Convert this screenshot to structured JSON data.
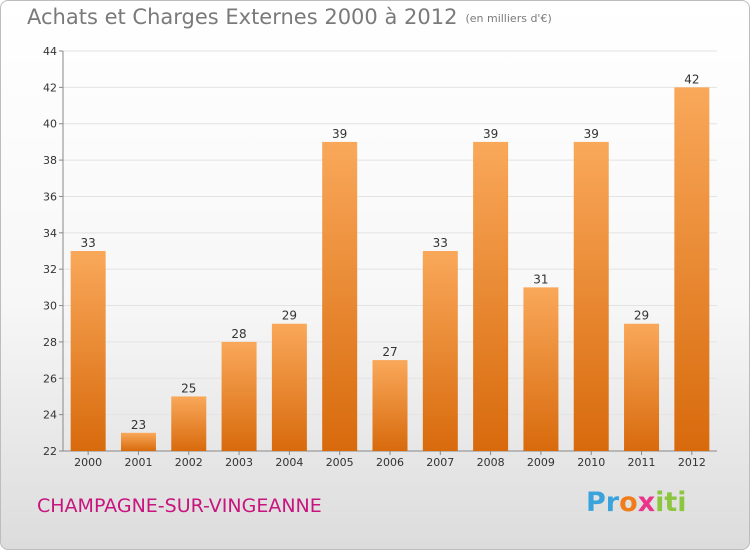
{
  "title": "Achats et Charges Externes 2000 à 2012",
  "subtitle": "(en milliers d'€)",
  "commune": "CHAMPAGNE-SUR-VINGEANNE",
  "brand": {
    "letters": [
      "P",
      "r",
      "o",
      "x",
      "i",
      "t",
      "i"
    ],
    "colors": [
      "#3aa3dc",
      "#3aa3dc",
      "#f07d1a",
      "#e9348a",
      "#8cc63f",
      "#8cc63f",
      "#8cc63f"
    ]
  },
  "colors": {
    "bar_light": "#f9a85a",
    "bar_dark": "#d86a0c",
    "axis": "#888888",
    "grid": "#e3e3e3",
    "tick_text": "#333333",
    "label_text": "#333333"
  },
  "chart_data": {
    "type": "bar",
    "title": "Achats et Charges Externes 2000 à 2012",
    "subtitle": "(en milliers d'€)",
    "xlabel": "",
    "ylabel": "",
    "categories": [
      "2000",
      "2001",
      "2002",
      "2003",
      "2004",
      "2005",
      "2006",
      "2007",
      "2008",
      "2009",
      "2010",
      "2011",
      "2012"
    ],
    "values": [
      33,
      23,
      25,
      28,
      29,
      39,
      27,
      33,
      39,
      31,
      39,
      29,
      42
    ],
    "ylim": [
      22,
      44
    ],
    "yticks": [
      22,
      24,
      26,
      28,
      30,
      32,
      34,
      36,
      38,
      40,
      42,
      44
    ],
    "grid": true,
    "data_labels": true,
    "legend": "none"
  }
}
